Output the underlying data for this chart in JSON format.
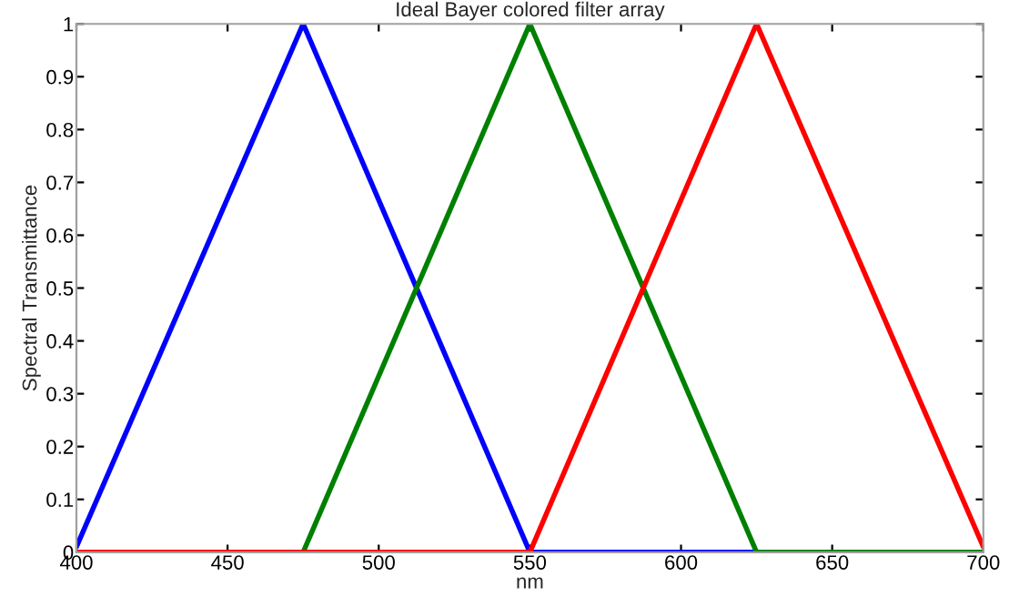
{
  "chart_data": {
    "type": "line",
    "title": "Ideal Bayer colored filter array",
    "xlabel": "nm",
    "ylabel": "Spectral Transmittance",
    "series": [
      {
        "color": "#0000ff",
        "x": [
          400,
          475,
          550,
          700
        ],
        "values": [
          0.01,
          1,
          0,
          0
        ]
      },
      {
        "color": "#008000",
        "x": [
          400,
          475,
          550,
          625,
          700
        ],
        "values": [
          0,
          0,
          1,
          0,
          0
        ]
      },
      {
        "color": "#ff0000",
        "x": [
          400,
          550,
          625,
          700
        ],
        "values": [
          0,
          0,
          1,
          0.01
        ]
      }
    ],
    "xlim": [
      400,
      700
    ],
    "xticks": [
      400,
      450,
      500,
      550,
      600,
      650,
      700
    ],
    "ylim": [
      0,
      1
    ],
    "yticks": [
      0,
      0.1,
      0.2,
      0.3,
      0.4,
      0.5,
      0.6,
      0.7,
      0.8,
      0.9,
      1
    ],
    "grid": false,
    "legend": false,
    "marker": "none",
    "line_style": "solid"
  }
}
